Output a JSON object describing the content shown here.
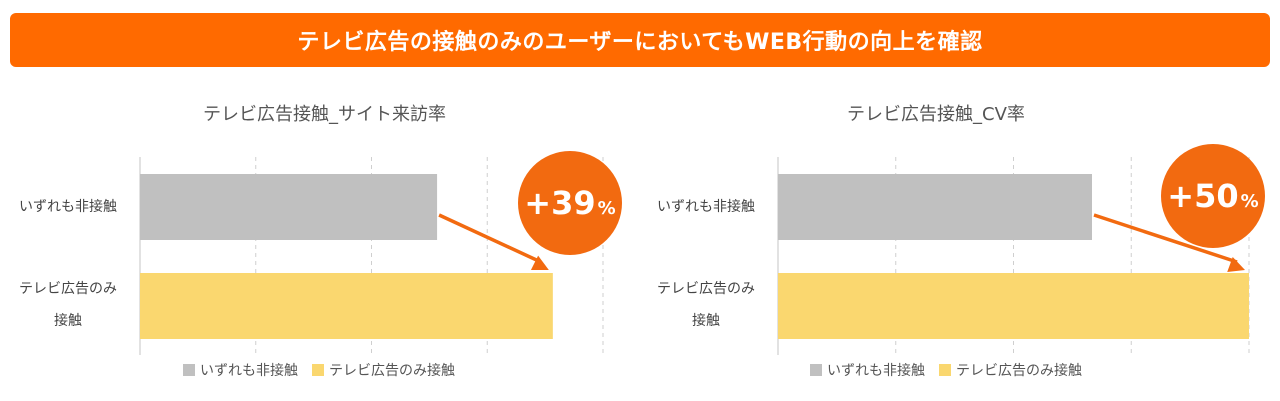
{
  "banner": {
    "text": "テレビ広告の接触のみのユーザーにおいてもWEB行動の向上を確認",
    "color": "#FF6A00"
  },
  "colors": {
    "gray": "#C0C0C0",
    "yellow": "#FAD76F",
    "accent": "#F26A10",
    "grid": "#CFCFCF"
  },
  "chart_data": [
    {
      "type": "bar",
      "orientation": "horizontal",
      "title": "テレビ広告接触_サイト来訪率",
      "categories": [
        "いずれも非接触",
        "テレビ広告のみ\n接触"
      ],
      "series": [
        {
          "name": "いずれも非接触",
          "values": [
            0.77,
            null
          ],
          "color": "#C0C0C0"
        },
        {
          "name": "テレビ広告のみ接触",
          "values": [
            null,
            1.07
          ],
          "color": "#FAD76F"
        }
      ],
      "xlim": [
        0,
        1.2
      ],
      "xticks": [
        0,
        0.3,
        0.6,
        0.9,
        1.2
      ],
      "grid": true,
      "show_tick_labels": false,
      "legend_position": "bottom",
      "annotation": {
        "text": "+39",
        "unit": "%",
        "value": 39
      }
    },
    {
      "type": "bar",
      "orientation": "horizontal",
      "title": "テレビ広告接触_CV率",
      "categories": [
        "いずれも非接触",
        "テレビ広告のみ\n接触"
      ],
      "series": [
        {
          "name": "いずれも非接触",
          "values": [
            0.8,
            null
          ],
          "color": "#C0C0C0"
        },
        {
          "name": "テレビ広告のみ接触",
          "values": [
            null,
            1.2
          ],
          "color": "#FAD76F"
        }
      ],
      "xlim": [
        0,
        1.2
      ],
      "xticks": [
        0,
        0.3,
        0.6,
        0.9,
        1.2
      ],
      "grid": true,
      "show_tick_labels": false,
      "legend_position": "bottom",
      "annotation": {
        "text": "+50",
        "unit": "%",
        "value": 50
      }
    }
  ]
}
